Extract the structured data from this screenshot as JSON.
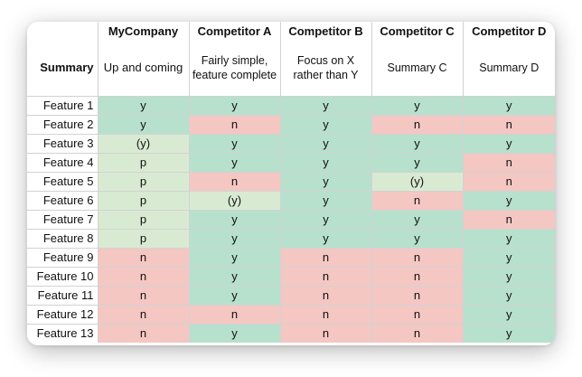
{
  "table": {
    "columns": [
      "MyCompany",
      "Competitor A",
      "Competitor B",
      "Competitor C",
      "Competitor D"
    ],
    "summary_label": "Summary",
    "summaries": [
      "Up and coming",
      "Fairly simple, feature complete",
      "Focus on X rather than Y",
      "Summary C",
      "Summary D"
    ],
    "features": [
      {
        "label": "Feature 1",
        "values": [
          "y",
          "y",
          "y",
          "y",
          "y"
        ]
      },
      {
        "label": "Feature 2",
        "values": [
          "y",
          "n",
          "y",
          "n",
          "n"
        ]
      },
      {
        "label": "Feature 3",
        "values": [
          "(y)",
          "y",
          "y",
          "y",
          "y"
        ]
      },
      {
        "label": "Feature 4",
        "values": [
          "p",
          "y",
          "y",
          "y",
          "n"
        ]
      },
      {
        "label": "Feature 5",
        "values": [
          "p",
          "n",
          "y",
          "(y)",
          "n"
        ]
      },
      {
        "label": "Feature 6",
        "values": [
          "p",
          "(y)",
          "y",
          "n",
          "y"
        ]
      },
      {
        "label": "Feature 7",
        "values": [
          "p",
          "y",
          "y",
          "y",
          "n"
        ]
      },
      {
        "label": "Feature 8",
        "values": [
          "p",
          "y",
          "y",
          "y",
          "y"
        ]
      },
      {
        "label": "Feature 9",
        "values": [
          "n",
          "y",
          "n",
          "n",
          "y"
        ]
      },
      {
        "label": "Feature 10",
        "values": [
          "n",
          "y",
          "n",
          "n",
          "y"
        ]
      },
      {
        "label": "Feature 11",
        "values": [
          "n",
          "y",
          "n",
          "n",
          "y"
        ]
      },
      {
        "label": "Feature 12",
        "values": [
          "n",
          "n",
          "n",
          "n",
          "y"
        ]
      },
      {
        "label": "Feature 13",
        "values": [
          "n",
          "y",
          "n",
          "n",
          "y"
        ]
      }
    ]
  },
  "colors": {
    "yes": "#b7e1cd",
    "no": "#f4c7c3",
    "partial": "#d9ead3",
    "grid": "#d2d2d2"
  }
}
